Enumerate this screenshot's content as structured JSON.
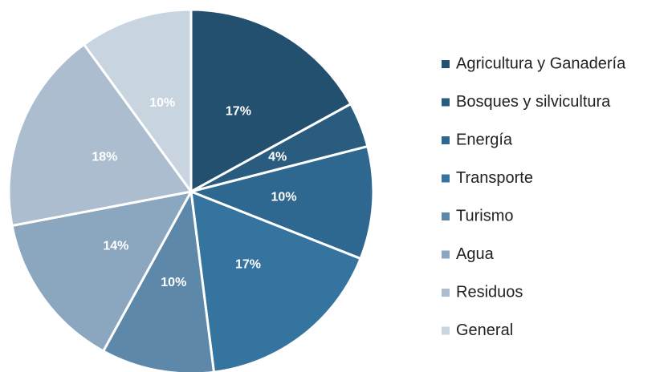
{
  "chart_data": {
    "type": "pie",
    "categories": [
      "Agricultura y Ganadería",
      "Bosques y silvicultura",
      "Energía",
      "Transporte",
      "Turismo",
      "Agua",
      "Residuos",
      "General"
    ],
    "values": [
      17,
      4,
      10,
      17,
      10,
      14,
      18,
      10
    ],
    "value_labels": [
      "17%",
      "4%",
      "10%",
      "17%",
      "10%",
      "14%",
      "18%",
      "10%"
    ],
    "colors": [
      "#24506f",
      "#2a5c80",
      "#2e6890",
      "#34749f",
      "#5e88aa",
      "#8ba6bf",
      "#acbdd0",
      "#c9d4e1"
    ],
    "legend": "right"
  }
}
